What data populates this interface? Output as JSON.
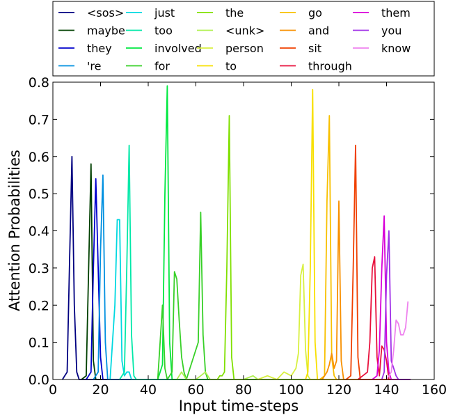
{
  "chart_data": {
    "type": "line",
    "title": "",
    "xlabel": "Input time-steps",
    "ylabel": "Attention Probabilities",
    "xlim": [
      0,
      160
    ],
    "ylim": [
      0,
      0.8
    ],
    "xticks": [
      0,
      20,
      40,
      60,
      80,
      100,
      120,
      140,
      160
    ],
    "yticks": [
      0.0,
      0.1,
      0.2,
      0.3,
      0.4,
      0.5,
      0.6,
      0.7,
      0.8
    ],
    "xtick_labels": [
      "0",
      "20",
      "40",
      "60",
      "80",
      "100",
      "120",
      "140",
      "160"
    ],
    "ytick_labels": [
      "0.0",
      "0.1",
      "0.2",
      "0.3",
      "0.4",
      "0.5",
      "0.6",
      "0.7",
      "0.8"
    ],
    "grid": false,
    "legend_position": "top",
    "series": [
      {
        "name": "<sos>",
        "color": "#000080",
        "points": [
          [
            4,
            0
          ],
          [
            6,
            0.02
          ],
          [
            7,
            0.32
          ],
          [
            8,
            0.6
          ],
          [
            9,
            0.2
          ],
          [
            10,
            0.02
          ],
          [
            11,
            0
          ],
          [
            150,
            0
          ]
        ]
      },
      {
        "name": "maybe",
        "color": "#004000",
        "points": [
          [
            12,
            0
          ],
          [
            14,
            0.01
          ],
          [
            15,
            0.3
          ],
          [
            16,
            0.58
          ],
          [
            17,
            0.05
          ],
          [
            18,
            0
          ],
          [
            150,
            0
          ]
        ]
      },
      {
        "name": "they",
        "color": "#0000cc",
        "points": [
          [
            14,
            0
          ],
          [
            16,
            0.02
          ],
          [
            17,
            0.3
          ],
          [
            18,
            0.54
          ],
          [
            19,
            0.3
          ],
          [
            20,
            0.06
          ],
          [
            21,
            0
          ],
          [
            150,
            0
          ]
        ]
      },
      {
        "name": "'re",
        "color": "#0090e0",
        "points": [
          [
            17,
            0
          ],
          [
            19,
            0.02
          ],
          [
            20,
            0.35
          ],
          [
            21,
            0.55
          ],
          [
            22,
            0.1
          ],
          [
            23,
            0
          ],
          [
            150,
            0
          ]
        ]
      },
      {
        "name": "just",
        "color": "#00d8e0",
        "points": [
          [
            24,
            0
          ],
          [
            26,
            0.2
          ],
          [
            27,
            0.43
          ],
          [
            28,
            0.43
          ],
          [
            29,
            0.05
          ],
          [
            30,
            0.01
          ],
          [
            31,
            0.02
          ],
          [
            32,
            0.02
          ],
          [
            33,
            0
          ],
          [
            150,
            0
          ]
        ]
      },
      {
        "name": "too",
        "color": "#00e8a8",
        "points": [
          [
            28,
            0
          ],
          [
            30,
            0.02
          ],
          [
            31,
            0.3
          ],
          [
            32,
            0.63
          ],
          [
            33,
            0.12
          ],
          [
            34,
            0.01
          ],
          [
            35,
            0
          ],
          [
            150,
            0
          ]
        ]
      },
      {
        "name": "involved",
        "color": "#00e840",
        "points": [
          [
            44,
            0
          ],
          [
            46,
            0.04
          ],
          [
            47,
            0.5
          ],
          [
            48,
            0.79
          ],
          [
            49,
            0.1
          ],
          [
            50,
            0
          ],
          [
            150,
            0
          ]
        ]
      },
      {
        "name": "for",
        "color": "#38d028",
        "points": [
          [
            44,
            0
          ],
          [
            46,
            0.2
          ],
          [
            47,
            0.03
          ],
          [
            48,
            0
          ],
          [
            50,
            0.02
          ],
          [
            51,
            0.29
          ],
          [
            52,
            0.27
          ],
          [
            53,
            0.16
          ],
          [
            54,
            0.06
          ],
          [
            55,
            0.02
          ],
          [
            56,
            0
          ],
          [
            61,
            0.1
          ],
          [
            62,
            0.45
          ],
          [
            63,
            0.12
          ],
          [
            64,
            0.02
          ],
          [
            65,
            0
          ],
          [
            150,
            0
          ]
        ]
      },
      {
        "name": "the",
        "color": "#80e000",
        "points": [
          [
            69,
            0
          ],
          [
            70,
            0.01
          ],
          [
            71,
            0.01
          ],
          [
            72,
            0.02
          ],
          [
            73,
            0.3
          ],
          [
            74,
            0.71
          ],
          [
            75,
            0.06
          ],
          [
            76,
            0
          ],
          [
            150,
            0
          ]
        ]
      },
      {
        "name": "<unk>",
        "color": "#b0f050",
        "points": [
          [
            52,
            0
          ],
          [
            53,
            0.01
          ],
          [
            54,
            0.02
          ],
          [
            55,
            0.01
          ],
          [
            56,
            0
          ],
          [
            60,
            0
          ],
          [
            62,
            0.01
          ],
          [
            64,
            0.02
          ],
          [
            66,
            0
          ],
          [
            80,
            0
          ],
          [
            84,
            0.01
          ],
          [
            86,
            0
          ],
          [
            150,
            0
          ]
        ]
      },
      {
        "name": "person",
        "color": "#d8f040",
        "points": [
          [
            86,
            0
          ],
          [
            90,
            0.01
          ],
          [
            94,
            0
          ],
          [
            97,
            0.02
          ],
          [
            100,
            0.01
          ],
          [
            102,
            0.03
          ],
          [
            103,
            0.07
          ],
          [
            104,
            0.28
          ],
          [
            105,
            0.31
          ],
          [
            106,
            0.08
          ],
          [
            107,
            0.01
          ],
          [
            108,
            0
          ],
          [
            150,
            0
          ]
        ]
      },
      {
        "name": "to",
        "color": "#f8e000",
        "points": [
          [
            106,
            0
          ],
          [
            107,
            0.02
          ],
          [
            108,
            0.3
          ],
          [
            109,
            0.78
          ],
          [
            110,
            0.1
          ],
          [
            111,
            0
          ],
          [
            150,
            0
          ]
        ]
      },
      {
        "name": "go",
        "color": "#f8c000",
        "points": [
          [
            112,
            0
          ],
          [
            114,
            0.01
          ],
          [
            115,
            0.48
          ],
          [
            116,
            0.71
          ],
          [
            117,
            0.06
          ],
          [
            118,
            0.01
          ],
          [
            119,
            0
          ],
          [
            150,
            0
          ]
        ]
      },
      {
        "name": "and",
        "color": "#f89000",
        "points": [
          [
            113,
            0
          ],
          [
            115,
            0.02
          ],
          [
            116,
            0.04
          ],
          [
            117,
            0.07
          ],
          [
            118,
            0.03
          ],
          [
            119,
            0.05
          ],
          [
            120,
            0.48
          ],
          [
            121,
            0.05
          ],
          [
            122,
            0
          ],
          [
            150,
            0
          ]
        ]
      },
      {
        "name": "sit",
        "color": "#f04000",
        "points": [
          [
            123,
            0
          ],
          [
            125,
            0.01
          ],
          [
            126,
            0.3
          ],
          [
            127,
            0.63
          ],
          [
            128,
            0.06
          ],
          [
            129,
            0
          ],
          [
            150,
            0
          ]
        ]
      },
      {
        "name": "through",
        "color": "#e8103c",
        "points": [
          [
            128,
            0
          ],
          [
            130,
            0.01
          ],
          [
            132,
            0.02
          ],
          [
            133,
            0.1
          ],
          [
            134,
            0.3
          ],
          [
            135,
            0.33
          ],
          [
            136,
            0.06
          ],
          [
            137,
            0.01
          ],
          [
            138,
            0.09
          ],
          [
            139,
            0.08
          ],
          [
            140,
            0.05
          ],
          [
            141,
            0
          ],
          [
            150,
            0
          ]
        ]
      },
      {
        "name": "them",
        "color": "#d800d8",
        "points": [
          [
            134,
            0
          ],
          [
            136,
            0.01
          ],
          [
            137,
            0.08
          ],
          [
            138,
            0.3
          ],
          [
            139,
            0.44
          ],
          [
            140,
            0.1
          ],
          [
            141,
            0.02
          ],
          [
            142,
            0
          ],
          [
            150,
            0
          ]
        ]
      },
      {
        "name": "you",
        "color": "#a030e8",
        "points": [
          [
            138,
            0
          ],
          [
            139,
            0.02
          ],
          [
            140,
            0.28
          ],
          [
            141,
            0.4
          ],
          [
            142,
            0.05
          ],
          [
            143,
            0.03
          ],
          [
            144,
            0.01
          ],
          [
            145,
            0
          ],
          [
            150,
            0
          ]
        ]
      },
      {
        "name": "know",
        "color": "#ee82ee",
        "points": [
          [
            140,
            0
          ],
          [
            141,
            0.01
          ],
          [
            142,
            0.02
          ],
          [
            143,
            0.08
          ],
          [
            144,
            0.16
          ],
          [
            145,
            0.15
          ],
          [
            146,
            0.12
          ],
          [
            147,
            0.12
          ],
          [
            148,
            0.14
          ],
          [
            149,
            0.21
          ]
        ]
      }
    ]
  }
}
